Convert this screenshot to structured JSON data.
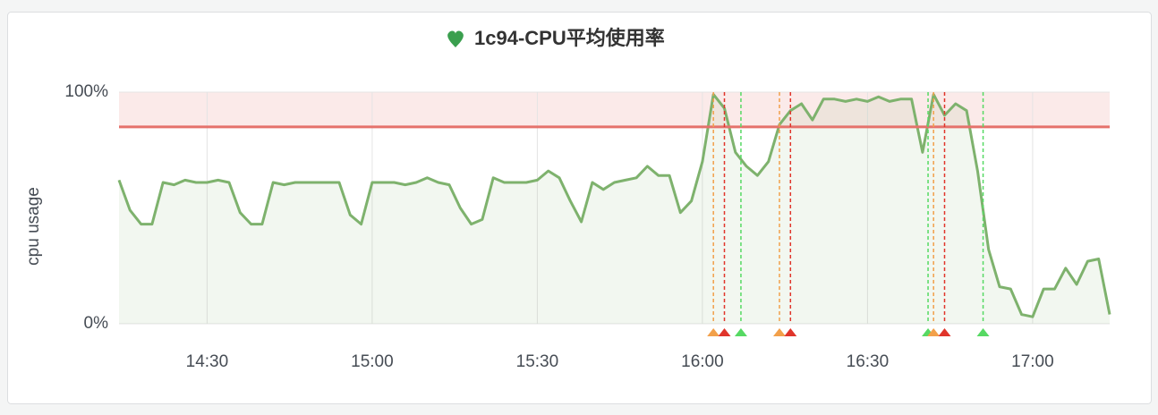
{
  "chart_data": {
    "type": "line",
    "title": "1c94-CPU平均使用率",
    "y_label": "cpu usage",
    "x": [
      "14:14",
      "14:16",
      "14:18",
      "14:20",
      "14:22",
      "14:24",
      "14:26",
      "14:28",
      "14:30",
      "14:32",
      "14:34",
      "14:36",
      "14:38",
      "14:40",
      "14:42",
      "14:44",
      "14:46",
      "14:48",
      "14:50",
      "14:52",
      "14:54",
      "14:56",
      "14:58",
      "15:00",
      "15:02",
      "15:04",
      "15:06",
      "15:08",
      "15:10",
      "15:12",
      "15:14",
      "15:16",
      "15:18",
      "15:20",
      "15:22",
      "15:24",
      "15:26",
      "15:28",
      "15:30",
      "15:32",
      "15:34",
      "15:36",
      "15:38",
      "15:40",
      "15:42",
      "15:44",
      "15:46",
      "15:48",
      "15:50",
      "15:52",
      "15:54",
      "15:56",
      "15:58",
      "16:00",
      "16:02",
      "16:04",
      "16:06",
      "16:08",
      "16:10",
      "16:12",
      "16:14",
      "16:16",
      "16:18",
      "16:20",
      "16:22",
      "16:24",
      "16:26",
      "16:28",
      "16:30",
      "16:32",
      "16:34",
      "16:36",
      "16:38",
      "16:40",
      "16:42",
      "16:44",
      "16:46",
      "16:48",
      "16:50",
      "16:52",
      "16:54",
      "16:56",
      "16:58",
      "17:00",
      "17:02",
      "17:04",
      "17:06",
      "17:08",
      "17:10",
      "17:12",
      "17:14"
    ],
    "values": [
      62,
      49,
      43,
      43,
      61,
      60,
      62,
      61,
      61,
      62,
      61,
      48,
      43,
      43,
      61,
      60,
      61,
      61,
      61,
      61,
      61,
      47,
      43,
      61,
      61,
      61,
      60,
      61,
      63,
      61,
      60,
      50,
      43,
      45,
      63,
      61,
      61,
      61,
      62,
      66,
      63,
      53,
      44,
      61,
      58,
      61,
      62,
      63,
      68,
      64,
      64,
      48,
      53,
      70,
      99,
      93,
      74,
      68,
      64,
      70,
      86,
      92,
      95,
      88,
      97,
      97,
      96,
      97,
      96,
      98,
      96,
      97,
      97,
      74,
      99,
      90,
      95,
      92,
      66,
      32,
      16,
      15,
      4,
      3,
      15,
      15,
      24,
      17,
      27,
      28,
      4
    ],
    "color": "#7eb26d",
    "fill": true,
    "xlim": [
      "14:14",
      "17:14"
    ],
    "xticks": [
      "14:30",
      "15:00",
      "15:30",
      "16:00",
      "16:30",
      "17:00"
    ],
    "ylim": [
      0,
      100
    ],
    "yticks": [
      {
        "value": 0,
        "label": "0%"
      },
      {
        "value": 100,
        "label": "100%"
      }
    ],
    "grid": true,
    "threshold": 85,
    "threshold_color": "#e5726b",
    "annotations": [
      {
        "time": "16:02",
        "color": "#f2a04a"
      },
      {
        "time": "16:04",
        "color": "#e0352b"
      },
      {
        "time": "16:07",
        "color": "#56d963"
      },
      {
        "time": "16:14",
        "color": "#f2a04a"
      },
      {
        "time": "16:16",
        "color": "#e0352b"
      },
      {
        "time": "16:41",
        "color": "#56d963"
      },
      {
        "time": "16:42",
        "color": "#f2a04a"
      },
      {
        "time": "16:44",
        "color": "#e0352b"
      },
      {
        "time": "16:51",
        "color": "#56d963"
      }
    ]
  }
}
